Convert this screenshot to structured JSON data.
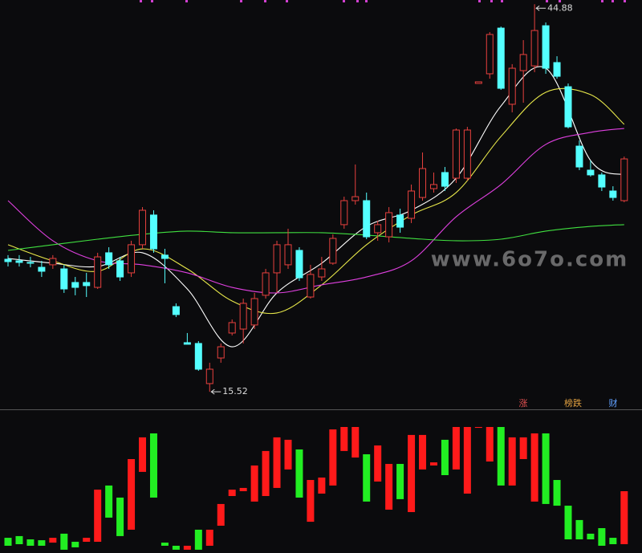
{
  "chart_data": [
    {
      "type": "candlestick",
      "open": [
        25.56,
        25.44,
        25.32,
        24.95,
        25.14,
        24.83,
        23.8,
        23.8,
        23.43,
        26.05,
        25.44,
        24.53,
        26.66,
        28.91,
        25.87,
        21.97,
        19.24,
        19.18,
        16.14,
        18.08,
        19.97,
        20.27,
        20.58,
        22.83,
        24.53,
        25.14,
        26.23,
        22.7,
        24.22,
        25.26,
        28.18,
        30.0,
        30.0,
        27.57,
        27.26,
        28.91,
        28.66,
        30.24,
        30.91,
        32.13,
        31.7,
        31.7,
        38.88,
        39.61,
        43.07,
        37.3,
        39.85,
        40.21,
        43.25,
        40.46,
        38.63,
        34.13,
        32.31,
        31.95,
        30.73,
        30.0
      ],
      "high": [
        25.87,
        25.87,
        25.74,
        25.44,
        25.87,
        25.14,
        24.22,
        24.53,
        26.05,
        26.47,
        25.74,
        26.96,
        29.51,
        29.27,
        26.35,
        22.22,
        19.97,
        19.36,
        17.72,
        19.18,
        21.0,
        22.58,
        23.01,
        24.83,
        26.96,
        27.87,
        26.47,
        25.14,
        25.74,
        27.45,
        30.3,
        32.74,
        30.61,
        28.48,
        29.51,
        29.39,
        31.22,
        33.65,
        32.13,
        32.55,
        35.47,
        35.59,
        39.0,
        42.77,
        43.19,
        40.34,
        42.16,
        44.88,
        43.5,
        40.94,
        38.88,
        34.56,
        33.04,
        32.13,
        31.09,
        33.34
      ],
      "low": [
        25.01,
        25.01,
        24.95,
        24.22,
        24.83,
        23.01,
        22.83,
        22.7,
        23.31,
        24.83,
        23.92,
        24.22,
        26.35,
        26.05,
        23.74,
        21.18,
        19.12,
        17.11,
        15.52,
        17.72,
        19.79,
        19.18,
        20.27,
        22.58,
        23.01,
        24.83,
        23.92,
        22.58,
        23.92,
        25.14,
        27.87,
        29.7,
        27.08,
        26.96,
        26.84,
        27.57,
        28.3,
        30.0,
        30.61,
        30.73,
        31.34,
        31.52,
        38.88,
        39.24,
        38.39,
        36.69,
        37.42,
        39.73,
        39.61,
        39.24,
        35.47,
        32.31,
        31.82,
        30.73,
        30.0,
        29.88
      ],
      "close": [
        25.38,
        25.32,
        25.26,
        24.65,
        25.62,
        23.31,
        23.43,
        23.56,
        25.74,
        25.14,
        24.22,
        26.66,
        29.27,
        26.35,
        25.62,
        21.37,
        19.12,
        17.23,
        17.23,
        18.93,
        20.76,
        22.22,
        22.58,
        24.53,
        26.66,
        26.66,
        24.16,
        24.41,
        24.83,
        27.14,
        30.0,
        30.3,
        27.26,
        28.18,
        29.09,
        27.99,
        30.73,
        32.43,
        31.22,
        31.09,
        35.35,
        35.35,
        39.0,
        42.59,
        38.51,
        40.03,
        41.07,
        42.89,
        40.03,
        39.42,
        35.59,
        32.55,
        31.95,
        31.03,
        30.24,
        33.16
      ],
      "ylim": [
        14.19,
        45.2
      ],
      "up_color": "#e8413e",
      "down_color": "#54ffff",
      "high_label": "44.88",
      "low_label": "15.52",
      "lines": [
        {
          "color": "#ffffff",
          "x": [
            0,
            4,
            8,
            12,
            16,
            20,
            24,
            28,
            32,
            36,
            40,
            44,
            48,
            52,
            55
          ],
          "values": [
            25.62,
            25.26,
            25.01,
            26.05,
            23.31,
            18.93,
            23.01,
            25.26,
            28.05,
            29.27,
            31.7,
            37.17,
            40.03,
            33.04,
            31.95
          ]
        },
        {
          "color": "#e8e84a",
          "x": [
            0,
            4,
            8,
            12,
            16,
            20,
            24,
            28,
            32,
            36,
            40,
            44,
            48,
            52,
            55
          ],
          "values": [
            26.66,
            25.44,
            24.65,
            26.35,
            24.83,
            22.4,
            21.49,
            23.62,
            26.66,
            28.91,
            30.61,
            34.86,
            38.21,
            38.03,
            35.78
          ]
        },
        {
          "color": "#e040e0",
          "x": [
            0,
            4,
            8,
            12,
            16,
            20,
            24,
            28,
            32,
            36,
            40,
            44,
            48,
            52,
            55
          ],
          "values": [
            30.0,
            26.96,
            25.44,
            25.14,
            24.53,
            23.43,
            23.01,
            23.62,
            24.22,
            25.44,
            28.78,
            31.22,
            34.26,
            35.17,
            35.47
          ]
        },
        {
          "color": "#40e040",
          "x": [
            0,
            4,
            8,
            12,
            16,
            20,
            24,
            28,
            32,
            36,
            40,
            44,
            48,
            52,
            55
          ],
          "values": [
            26.23,
            26.66,
            27.08,
            27.45,
            27.69,
            27.57,
            27.57,
            27.57,
            27.39,
            27.14,
            26.96,
            27.08,
            27.69,
            28.05,
            28.18
          ]
        }
      ]
    },
    {
      "type": "floating-bar",
      "low": [
        5.1,
        6.2,
        5.1,
        5.1,
        7.3,
        2.3,
        4.0,
        7.9,
        7.9,
        24.9,
        11.9,
        16.4,
        57.1,
        39.0,
        5.1,
        2.3,
        2.3,
        2.3,
        5.1,
        19.2,
        40.1,
        43.5,
        36.2,
        40.1,
        45.8,
        58.8,
        39.0,
        22.0,
        41.8,
        47.5,
        71.8,
        67.2,
        36.2,
        50.3,
        30.5,
        37.9,
        28.8,
        58.8,
        61.6,
        54.8,
        58.8,
        41.8,
        88.1,
        64.4,
        47.5,
        47.5,
        66.1,
        36.2,
        34.5,
        33.3,
        9.6,
        9.6,
        9.6,
        5.1,
        6.2,
        6.2
      ],
      "high": [
        10.7,
        11.9,
        9.6,
        9.0,
        10.7,
        13.6,
        7.9,
        10.7,
        44.6,
        47.5,
        39.0,
        66.1,
        81.4,
        84.2,
        7.3,
        5.1,
        5.1,
        16.4,
        16.4,
        34.5,
        44.6,
        45.8,
        61.6,
        71.8,
        81.4,
        79.7,
        72.9,
        51.4,
        53.1,
        87.0,
        88.7,
        88.7,
        69.5,
        75.7,
        62.7,
        62.7,
        83.1,
        83.1,
        63.8,
        79.7,
        88.7,
        88.7,
        88.7,
        88.7,
        88.7,
        81.4,
        81.4,
        84.2,
        84.2,
        51.4,
        33.3,
        23.2,
        13.6,
        17.5,
        10.7,
        43.5
      ],
      "rising": [
        false,
        false,
        false,
        false,
        true,
        false,
        false,
        true,
        true,
        false,
        false,
        true,
        true,
        false,
        false,
        false,
        true,
        false,
        true,
        true,
        true,
        true,
        true,
        true,
        true,
        true,
        false,
        true,
        true,
        true,
        true,
        true,
        false,
        true,
        true,
        false,
        true,
        true,
        true,
        false,
        true,
        true,
        true,
        true,
        false,
        true,
        true,
        true,
        false,
        false,
        false,
        false,
        false,
        false,
        false,
        true
      ],
      "ylim": [
        0,
        100
      ],
      "up_color": "#ff1a1a",
      "down_color": "#22ee22"
    }
  ],
  "tags": [
    {
      "text": "涨",
      "color": "#e05050"
    },
    {
      "text": "榜跌",
      "color": "#e0a040"
    },
    {
      "text": "财",
      "color": "#60a0ff"
    }
  ],
  "watermark": "www.6o7o.com"
}
